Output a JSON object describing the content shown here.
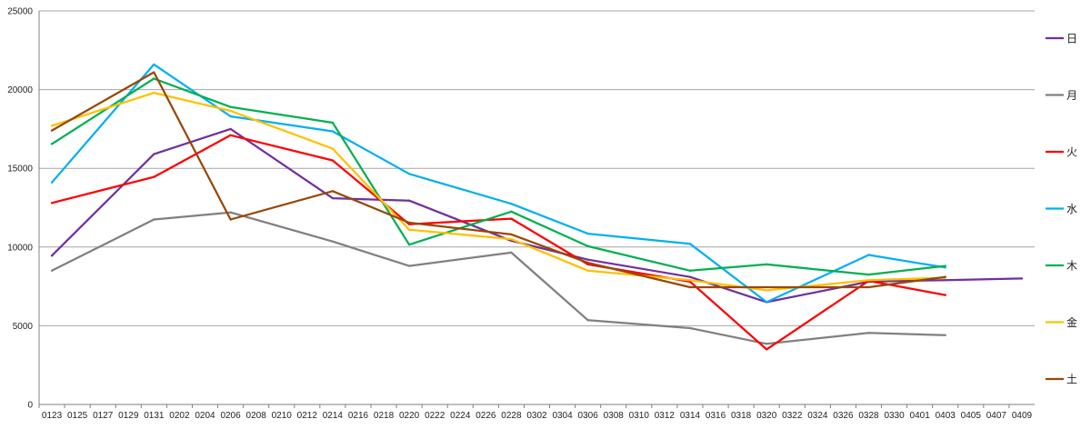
{
  "chart_data": {
    "type": "line",
    "title": "",
    "xlabel": "",
    "ylabel": "",
    "ylim": [
      0,
      25000
    ],
    "grid": true,
    "legend_position": "right",
    "y_ticks": [
      "0",
      "5000",
      "10000",
      "15000",
      "20000",
      "25000"
    ],
    "categories": [
      "0123",
      "0125",
      "0127",
      "0129",
      "0131",
      "0202",
      "0204",
      "0206",
      "0208",
      "0210",
      "0212",
      "0214",
      "0216",
      "0218",
      "0220",
      "0222",
      "0224",
      "0226",
      "0228",
      "0302",
      "0304",
      "0306",
      "0308",
      "0310",
      "0312",
      "0314",
      "0316",
      "0318",
      "0320",
      "0322",
      "0324",
      "0326",
      "0328",
      "0330",
      "0401",
      "0403",
      "0405",
      "0407",
      "0409"
    ],
    "series": [
      {
        "name": "日",
        "color": "#7030A0",
        "values": [
          9450,
          null,
          null,
          null,
          15900,
          null,
          null,
          17500,
          null,
          null,
          null,
          13100,
          null,
          null,
          12950,
          null,
          null,
          null,
          10400,
          null,
          null,
          9200,
          null,
          null,
          null,
          8100,
          null,
          null,
          6500,
          null,
          null,
          null,
          7800,
          null,
          null,
          7900,
          null,
          null,
          8000
        ]
      },
      {
        "name": "月",
        "color": "#808080",
        "values": [
          8500,
          null,
          null,
          null,
          11750,
          null,
          null,
          12200,
          null,
          null,
          null,
          10350,
          null,
          null,
          8800,
          null,
          null,
          null,
          9650,
          null,
          null,
          5350,
          null,
          null,
          null,
          4850,
          null,
          null,
          3850,
          null,
          null,
          null,
          4550,
          null,
          null,
          4400,
          null,
          null,
          null
        ]
      },
      {
        "name": "火",
        "color": "#FF0000",
        "values": [
          12800,
          null,
          null,
          null,
          14450,
          null,
          null,
          17100,
          null,
          null,
          null,
          15500,
          null,
          null,
          11450,
          null,
          null,
          null,
          11800,
          null,
          null,
          8900,
          null,
          null,
          null,
          7800,
          null,
          null,
          3500,
          null,
          null,
          null,
          7850,
          null,
          null,
          6950,
          null,
          null,
          null
        ]
      },
      {
        "name": "水",
        "color": "#00B0F0",
        "values": [
          14100,
          null,
          null,
          null,
          21600,
          null,
          null,
          18300,
          null,
          null,
          null,
          17350,
          null,
          null,
          14650,
          null,
          null,
          null,
          12750,
          null,
          null,
          10850,
          null,
          null,
          null,
          10200,
          null,
          null,
          6500,
          null,
          null,
          null,
          9500,
          null,
          null,
          8700,
          null,
          null,
          null
        ]
      },
      {
        "name": "木",
        "color": "#00B050",
        "values": [
          16550,
          null,
          null,
          null,
          20700,
          null,
          null,
          18900,
          null,
          null,
          null,
          17900,
          null,
          null,
          10150,
          null,
          null,
          null,
          12250,
          null,
          null,
          10050,
          null,
          null,
          null,
          8500,
          null,
          null,
          8900,
          null,
          null,
          null,
          8250,
          null,
          null,
          8800,
          null,
          null,
          null
        ]
      },
      {
        "name": "金",
        "color": "#FFC000",
        "values": [
          17700,
          null,
          null,
          null,
          19800,
          null,
          null,
          18650,
          null,
          null,
          null,
          16250,
          null,
          null,
          11100,
          null,
          null,
          null,
          10500,
          null,
          null,
          8500,
          null,
          null,
          null,
          7900,
          null,
          null,
          7250,
          null,
          null,
          null,
          7900,
          null,
          null,
          8050,
          null,
          null,
          null
        ]
      },
      {
        "name": "土",
        "color": "#984806",
        "values": [
          17400,
          null,
          null,
          null,
          21100,
          null,
          null,
          11750,
          null,
          null,
          null,
          13550,
          null,
          null,
          11550,
          null,
          null,
          null,
          10800,
          null,
          null,
          9000,
          null,
          null,
          null,
          7450,
          null,
          null,
          7450,
          null,
          null,
          null,
          7450,
          null,
          null,
          8100,
          null,
          null,
          null
        ]
      }
    ]
  }
}
